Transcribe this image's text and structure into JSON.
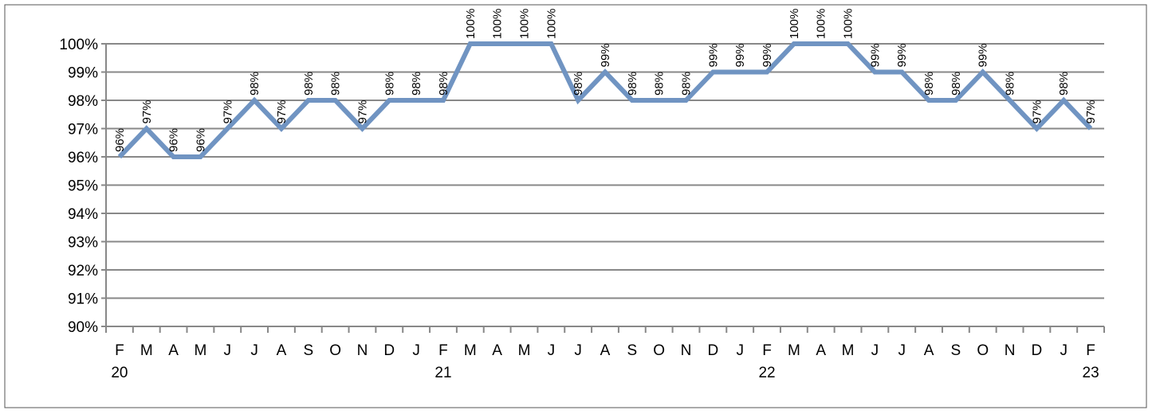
{
  "chart_data": {
    "type": "line",
    "categories": [
      "F",
      "M",
      "A",
      "M",
      "J",
      "J",
      "A",
      "S",
      "O",
      "N",
      "D",
      "J",
      "F",
      "M",
      "A",
      "M",
      "J",
      "J",
      "A",
      "S",
      "O",
      "N",
      "D",
      "J",
      "F",
      "M",
      "A",
      "M",
      "J",
      "J",
      "A",
      "S",
      "O",
      "N",
      "D",
      "J",
      "F"
    ],
    "years": [
      "20",
      null,
      null,
      null,
      null,
      null,
      null,
      null,
      null,
      null,
      null,
      null,
      "21",
      null,
      null,
      null,
      null,
      null,
      null,
      null,
      null,
      null,
      null,
      null,
      "22",
      null,
      null,
      null,
      null,
      null,
      null,
      null,
      null,
      null,
      null,
      null,
      "23"
    ],
    "series": [
      {
        "color": "#7094c2",
        "values": [
          96,
          97,
          96,
          96,
          97,
          98,
          97,
          98,
          98,
          97,
          98,
          98,
          98,
          100,
          100,
          100,
          100,
          98,
          99,
          98,
          98,
          98,
          99,
          99,
          99,
          100,
          100,
          100,
          99,
          99,
          98,
          98,
          99,
          98,
          97,
          98,
          97
        ],
        "value_labels": [
          "96%",
          "97%",
          "96%",
          "96%",
          "97%",
          "98%",
          "97%",
          "98%",
          "98%",
          "97%",
          "98%",
          "98%",
          "98%",
          "100%",
          "100%",
          "100%",
          "100%",
          "98%",
          "99%",
          "98%",
          "98%",
          "98%",
          "99%",
          "99%",
          "99%",
          "100%",
          "100%",
          "100%",
          "99%",
          "99%",
          "98%",
          "98%",
          "99%",
          "98%",
          "97%",
          "98%",
          "97%"
        ]
      }
    ],
    "ylim": [
      90,
      100
    ],
    "yticks": [
      {
        "value": 90,
        "label": "90%"
      },
      {
        "value": 91,
        "label": "91%"
      },
      {
        "value": 92,
        "label": "92%"
      },
      {
        "value": 93,
        "label": "93%"
      },
      {
        "value": 94,
        "label": "94%"
      },
      {
        "value": 95,
        "label": "95%"
      },
      {
        "value": 96,
        "label": "96%"
      },
      {
        "value": 97,
        "label": "97%"
      },
      {
        "value": 98,
        "label": "98%"
      },
      {
        "value": 99,
        "label": "99%"
      },
      {
        "value": 100,
        "label": "100%"
      }
    ],
    "grid": true
  }
}
